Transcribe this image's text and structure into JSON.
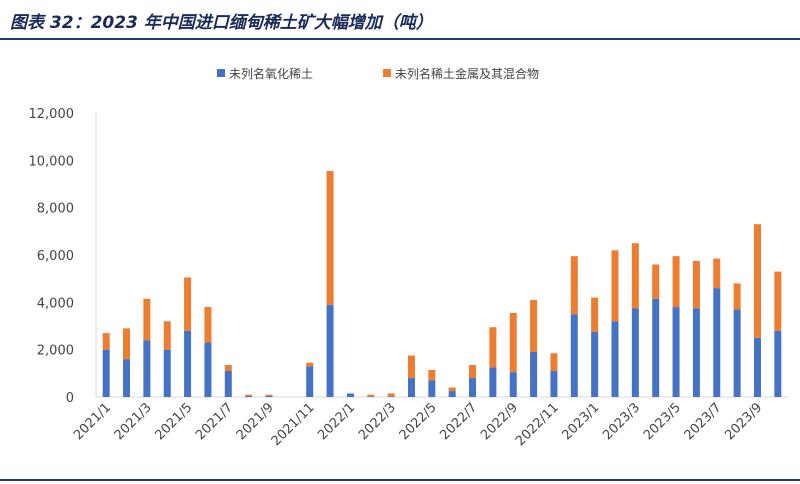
{
  "title": "图表 32：2023 年中国进口缅甸稀土矿大幅增加（吨）",
  "colors": {
    "series1": "#4472C4",
    "series2": "#ED7D31",
    "axis": "#d9d9d9",
    "rule": "#1f3a7a"
  },
  "chart_data": {
    "type": "bar",
    "stacked": true,
    "title": "图表 32：2023 年中国进口缅甸稀土矿大幅增加（吨）",
    "xlabel": "",
    "ylabel": "",
    "ylim": [
      0,
      12000
    ],
    "yticks": [
      0,
      2000,
      4000,
      6000,
      8000,
      10000,
      12000
    ],
    "ytick_labels": [
      "0",
      "2,000",
      "4,000",
      "6,000",
      "8,000",
      "10,000",
      "12,000"
    ],
    "grid": false,
    "legend_position": "top-center",
    "categories": [
      "2021/1",
      "2021/2",
      "2021/3",
      "2021/4",
      "2021/5",
      "2021/6",
      "2021/7",
      "2021/8",
      "2021/9",
      "2021/10",
      "2021/11",
      "2021/12",
      "2022/1",
      "2022/2",
      "2022/3",
      "2022/4",
      "2022/5",
      "2022/6",
      "2022/7",
      "2022/8",
      "2022/9",
      "2022/10",
      "2022/11",
      "2022/12",
      "2023/1",
      "2023/2",
      "2023/3",
      "2023/4",
      "2023/5",
      "2023/6",
      "2023/7",
      "2023/8",
      "2023/9",
      "2023/10"
    ],
    "xtick_labels": [
      "2021/1",
      "2021/3",
      "2021/5",
      "2021/7",
      "2021/9",
      "2021/11",
      "2022/1",
      "2022/3",
      "2022/5",
      "2022/7",
      "2022/9",
      "2022/11",
      "2023/1",
      "2023/3",
      "2023/5",
      "2023/7",
      "2023/9"
    ],
    "series": [
      {
        "name": "未列名氧化稀土",
        "values": [
          2000,
          1600,
          2400,
          2000,
          2800,
          2300,
          1100,
          50,
          50,
          0,
          1300,
          3900,
          150,
          30,
          30,
          800,
          700,
          250,
          800,
          1250,
          1050,
          1900,
          1100,
          3500,
          2750,
          3200,
          3750,
          4150,
          3800,
          3750,
          4600,
          3700,
          2500,
          2800
        ]
      },
      {
        "name": "未列名稀土金属及其混合物",
        "values": [
          700,
          1300,
          1750,
          1200,
          2250,
          1500,
          250,
          50,
          50,
          0,
          150,
          5650,
          0,
          70,
          120,
          950,
          450,
          150,
          550,
          1700,
          2500,
          2200,
          750,
          2450,
          1450,
          3000,
          2750,
          1450,
          2150,
          2000,
          1250,
          1100,
          4800,
          2500
        ]
      }
    ]
  }
}
